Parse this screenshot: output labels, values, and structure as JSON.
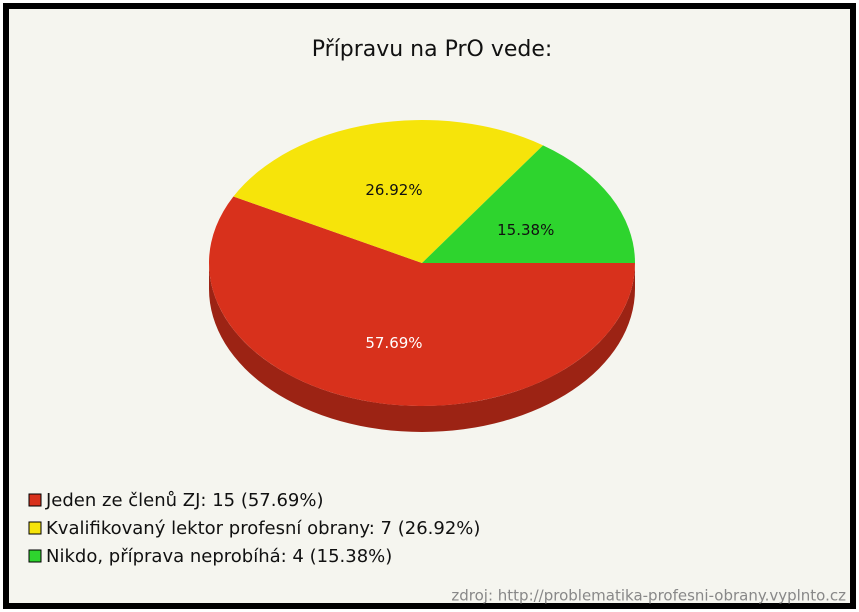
{
  "chart_data": {
    "type": "pie3d",
    "title": "Přípravu na PrO vede:",
    "categories": [
      "Jeden ze členů ZJ: 15 (57.69%)",
      "Kvalifikovaný lektor profesní obrany: 7 (26.92%)",
      "Nikdo, příprava neprobíhá: 4 (15.38%)"
    ],
    "values": [
      57.69,
      26.92,
      15.38
    ],
    "value_labels": [
      "57.69%",
      "26.92%",
      "15.38%"
    ],
    "colors": [
      "#d8311c",
      "#f6e40a",
      "#2ed42e"
    ],
    "source": "zdroj: http://problematika-profesni-obrany.vyplnto.cz",
    "legend": "bottom-left"
  }
}
